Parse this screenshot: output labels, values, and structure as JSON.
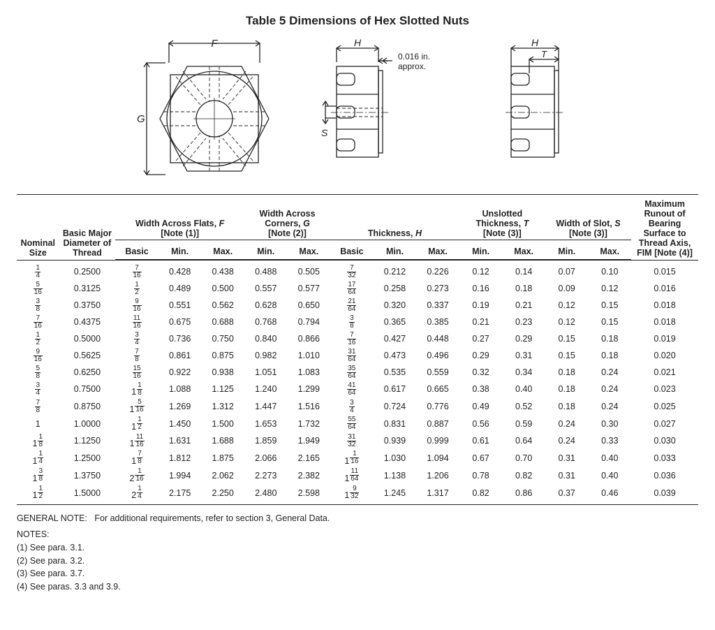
{
  "title": "Table 5   Dimensions of Hex Slotted Nuts",
  "diagram": {
    "labels": {
      "F": "F",
      "G": "G",
      "H": "H",
      "S": "S",
      "T": "T",
      "tol": "0.016 in.\napprox."
    },
    "stroke": "#222222",
    "fill": "#ffffff"
  },
  "headers": {
    "nominal": "Nominal\nSize",
    "diameter": "Basic Major\nDiameter of\nThread",
    "flats": "Width Across Flats, F\n[Note (1)]",
    "corners": "Width Across\nCorners, G\n[Note (2)]",
    "thickness": "Thickness, H",
    "unslotted": "Unslotted\nThickness, T\n[Note (3)]",
    "slot": "Width of Slot, S\n[Note (3)]",
    "runout": "Maximum\nRunout of\nBearing\nSurface to\nThread Axis,\nFIM [Note (4)]",
    "sub": {
      "basic": "Basic",
      "min": "Min.",
      "max": "Max."
    }
  },
  "rows": [
    {
      "size": {
        "w": "",
        "n": "1",
        "d": "4"
      },
      "dia": "0.2500",
      "fB": {
        "w": "",
        "n": "7",
        "d": "16"
      },
      "fMin": "0.428",
      "fMax": "0.438",
      "gMin": "0.488",
      "gMax": "0.505",
      "hB": {
        "w": "",
        "n": "7",
        "d": "32"
      },
      "hMin": "0.212",
      "hMax": "0.226",
      "tMin": "0.12",
      "tMax": "0.14",
      "sMin": "0.07",
      "sMax": "0.10",
      "run": "0.015"
    },
    {
      "size": {
        "w": "",
        "n": "5",
        "d": "16"
      },
      "dia": "0.3125",
      "fB": {
        "w": "",
        "n": "1",
        "d": "2"
      },
      "fMin": "0.489",
      "fMax": "0.500",
      "gMin": "0.557",
      "gMax": "0.577",
      "hB": {
        "w": "",
        "n": "17",
        "d": "64"
      },
      "hMin": "0.258",
      "hMax": "0.273",
      "tMin": "0.16",
      "tMax": "0.18",
      "sMin": "0.09",
      "sMax": "0.12",
      "run": "0.016"
    },
    {
      "size": {
        "w": "",
        "n": "3",
        "d": "8"
      },
      "dia": "0.3750",
      "fB": {
        "w": "",
        "n": "9",
        "d": "16"
      },
      "fMin": "0.551",
      "fMax": "0.562",
      "gMin": "0.628",
      "gMax": "0.650",
      "hB": {
        "w": "",
        "n": "21",
        "d": "64"
      },
      "hMin": "0.320",
      "hMax": "0.337",
      "tMin": "0.19",
      "tMax": "0.21",
      "sMin": "0.12",
      "sMax": "0.15",
      "run": "0.018"
    },
    {
      "size": {
        "w": "",
        "n": "7",
        "d": "16"
      },
      "dia": "0.4375",
      "fB": {
        "w": "",
        "n": "11",
        "d": "16"
      },
      "fMin": "0.675",
      "fMax": "0.688",
      "gMin": "0.768",
      "gMax": "0.794",
      "hB": {
        "w": "",
        "n": "3",
        "d": "8"
      },
      "hMin": "0.365",
      "hMax": "0.385",
      "tMin": "0.21",
      "tMax": "0.23",
      "sMin": "0.12",
      "sMax": "0.15",
      "run": "0.018"
    },
    {
      "size": {
        "w": "",
        "n": "1",
        "d": "2"
      },
      "dia": "0.5000",
      "fB": {
        "w": "",
        "n": "3",
        "d": "4"
      },
      "fMin": "0.736",
      "fMax": "0.750",
      "gMin": "0.840",
      "gMax": "0.866",
      "hB": {
        "w": "",
        "n": "7",
        "d": "16"
      },
      "hMin": "0.427",
      "hMax": "0.448",
      "tMin": "0.27",
      "tMax": "0.29",
      "sMin": "0.15",
      "sMax": "0.18",
      "run": "0.019"
    },
    {
      "size": {
        "w": "",
        "n": "9",
        "d": "16"
      },
      "dia": "0.5625",
      "fB": {
        "w": "",
        "n": "7",
        "d": "8"
      },
      "fMin": "0.861",
      "fMax": "0.875",
      "gMin": "0.982",
      "gMax": "1.010",
      "hB": {
        "w": "",
        "n": "31",
        "d": "64"
      },
      "hMin": "0.473",
      "hMax": "0.496",
      "tMin": "0.29",
      "tMax": "0.31",
      "sMin": "0.15",
      "sMax": "0.18",
      "run": "0.020"
    },
    {
      "size": {
        "w": "",
        "n": "5",
        "d": "8"
      },
      "dia": "0.6250",
      "fB": {
        "w": "",
        "n": "15",
        "d": "16"
      },
      "fMin": "0.922",
      "fMax": "0.938",
      "gMin": "1.051",
      "gMax": "1.083",
      "hB": {
        "w": "",
        "n": "35",
        "d": "64"
      },
      "hMin": "0.535",
      "hMax": "0.559",
      "tMin": "0.32",
      "tMax": "0.34",
      "sMin": "0.18",
      "sMax": "0.24",
      "run": "0.021"
    },
    {
      "size": {
        "w": "",
        "n": "3",
        "d": "4"
      },
      "dia": "0.7500",
      "fB": {
        "w": "1",
        "n": "1",
        "d": "8"
      },
      "fMin": "1.088",
      "fMax": "1.125",
      "gMin": "1.240",
      "gMax": "1.299",
      "hB": {
        "w": "",
        "n": "41",
        "d": "64"
      },
      "hMin": "0.617",
      "hMax": "0.665",
      "tMin": "0.38",
      "tMax": "0.40",
      "sMin": "0.18",
      "sMax": "0.24",
      "run": "0.023"
    },
    {
      "size": {
        "w": "",
        "n": "7",
        "d": "8"
      },
      "dia": "0.8750",
      "fB": {
        "w": "1",
        "n": "5",
        "d": "16"
      },
      "fMin": "1.269",
      "fMax": "1.312",
      "gMin": "1.447",
      "gMax": "1.516",
      "hB": {
        "w": "",
        "n": "3",
        "d": "4"
      },
      "hMin": "0.724",
      "hMax": "0.776",
      "tMin": "0.49",
      "tMax": "0.52",
      "sMin": "0.18",
      "sMax": "0.24",
      "run": "0.025"
    },
    {
      "size": {
        "w": "1",
        "n": "",
        "d": ""
      },
      "dia": "1.0000",
      "fB": {
        "w": "1",
        "n": "1",
        "d": "2"
      },
      "fMin": "1.450",
      "fMax": "1.500",
      "gMin": "1.653",
      "gMax": "1.732",
      "hB": {
        "w": "",
        "n": "55",
        "d": "64"
      },
      "hMin": "0.831",
      "hMax": "0.887",
      "tMin": "0.56",
      "tMax": "0.59",
      "sMin": "0.24",
      "sMax": "0.30",
      "run": "0.027"
    },
    {
      "size": {
        "w": "1",
        "n": "1",
        "d": "8"
      },
      "dia": "1.1250",
      "fB": {
        "w": "1",
        "n": "11",
        "d": "16"
      },
      "fMin": "1.631",
      "fMax": "1.688",
      "gMin": "1.859",
      "gMax": "1.949",
      "hB": {
        "w": "",
        "n": "31",
        "d": "32"
      },
      "hMin": "0.939",
      "hMax": "0.999",
      "tMin": "0.61",
      "tMax": "0.64",
      "sMin": "0.24",
      "sMax": "0.33",
      "run": "0.030"
    },
    {
      "size": {
        "w": "1",
        "n": "1",
        "d": "4"
      },
      "dia": "1.2500",
      "fB": {
        "w": "1",
        "n": "7",
        "d": "8"
      },
      "fMin": "1.812",
      "fMax": "1.875",
      "gMin": "2.066",
      "gMax": "2.165",
      "hB": {
        "w": "1",
        "n": "1",
        "d": "16"
      },
      "hMin": "1.030",
      "hMax": "1.094",
      "tMin": "0.67",
      "tMax": "0.70",
      "sMin": "0.31",
      "sMax": "0.40",
      "run": "0.033"
    },
    {
      "size": {
        "w": "1",
        "n": "3",
        "d": "8"
      },
      "dia": "1.3750",
      "fB": {
        "w": "2",
        "n": "1",
        "d": "16"
      },
      "fMin": "1.994",
      "fMax": "2.062",
      "gMin": "2.273",
      "gMax": "2.382",
      "hB": {
        "w": "1",
        "n": "11",
        "d": "64"
      },
      "hMin": "1.138",
      "hMax": "1.206",
      "tMin": "0.78",
      "tMax": "0.82",
      "sMin": "0.31",
      "sMax": "0.40",
      "run": "0.036"
    },
    {
      "size": {
        "w": "1",
        "n": "1",
        "d": "2"
      },
      "dia": "1.5000",
      "fB": {
        "w": "2",
        "n": "1",
        "d": "4"
      },
      "fMin": "2.175",
      "fMax": "2.250",
      "gMin": "2.480",
      "gMax": "2.598",
      "hB": {
        "w": "1",
        "n": "9",
        "d": "32"
      },
      "hMin": "1.245",
      "hMax": "1.317",
      "tMin": "0.82",
      "tMax": "0.86",
      "sMin": "0.37",
      "sMax": "0.46",
      "run": "0.039"
    }
  ],
  "notes": {
    "general_label": "GENERAL NOTE:",
    "general_text": "For additional requirements, refer to section 3, General Data.",
    "notes_label": "NOTES:",
    "items": [
      "(1) See para. 3.1.",
      "(2) See para. 3.2.",
      "(3) See para. 3.7.",
      "(4) See paras. 3.3 and 3.9."
    ]
  }
}
